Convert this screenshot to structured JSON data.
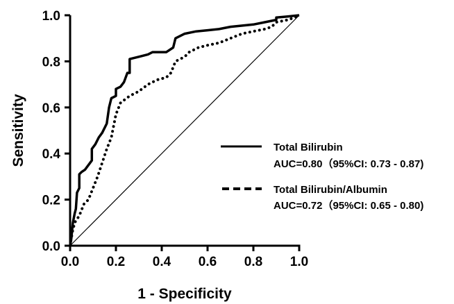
{
  "chart_data": {
    "type": "line",
    "xlabel": "1 - Specificity",
    "ylabel": "Sensitivity",
    "xlim": [
      0,
      1
    ],
    "ylim": [
      0,
      1
    ],
    "x_ticks": [
      "0.0",
      "0.2",
      "0.4",
      "0.6",
      "0.8",
      "1.0"
    ],
    "y_ticks": [
      "0.0",
      "0.2",
      "0.4",
      "0.6",
      "0.8",
      "1.0"
    ],
    "grid": false,
    "legend_position": "right",
    "reference_line": [
      [
        0,
        0
      ],
      [
        1,
        1
      ]
    ],
    "series": [
      {
        "name": "Total Bilirubin",
        "auc_label": "AUC=0.80（95%CI: 0.73 - 0.87)",
        "style": "solid",
        "color": "#000000",
        "points": [
          [
            0,
            0
          ],
          [
            0.005,
            0.03
          ],
          [
            0.012,
            0.1
          ],
          [
            0.02,
            0.14
          ],
          [
            0.025,
            0.16
          ],
          [
            0.03,
            0.23
          ],
          [
            0.04,
            0.25
          ],
          [
            0.04,
            0.31
          ],
          [
            0.05,
            0.32
          ],
          [
            0.065,
            0.33
          ],
          [
            0.08,
            0.35
          ],
          [
            0.095,
            0.37
          ],
          [
            0.095,
            0.42
          ],
          [
            0.11,
            0.44
          ],
          [
            0.125,
            0.47
          ],
          [
            0.14,
            0.49
          ],
          [
            0.16,
            0.53
          ],
          [
            0.17,
            0.6
          ],
          [
            0.18,
            0.64
          ],
          [
            0.2,
            0.65
          ],
          [
            0.2,
            0.68
          ],
          [
            0.22,
            0.69
          ],
          [
            0.235,
            0.71
          ],
          [
            0.25,
            0.75
          ],
          [
            0.26,
            0.75
          ],
          [
            0.26,
            0.81
          ],
          [
            0.3,
            0.82
          ],
          [
            0.34,
            0.83
          ],
          [
            0.36,
            0.84
          ],
          [
            0.42,
            0.84
          ],
          [
            0.45,
            0.86
          ],
          [
            0.46,
            0.9
          ],
          [
            0.5,
            0.92
          ],
          [
            0.55,
            0.93
          ],
          [
            0.6,
            0.935
          ],
          [
            0.65,
            0.94
          ],
          [
            0.7,
            0.95
          ],
          [
            0.8,
            0.96
          ],
          [
            0.85,
            0.97
          ],
          [
            0.9,
            0.98
          ],
          [
            0.9,
            0.99
          ],
          [
            0.95,
            0.995
          ],
          [
            1,
            1
          ]
        ]
      },
      {
        "name": "Total Bilirubin/Albumin",
        "auc_label": "AUC=0.72（95%CI: 0.65 - 0.80)",
        "style": "dotted",
        "color": "#000000",
        "points": [
          [
            0,
            0
          ],
          [
            0.01,
            0.06
          ],
          [
            0.02,
            0.1
          ],
          [
            0.04,
            0.13
          ],
          [
            0.06,
            0.18
          ],
          [
            0.08,
            0.2
          ],
          [
            0.1,
            0.25
          ],
          [
            0.12,
            0.3
          ],
          [
            0.14,
            0.36
          ],
          [
            0.16,
            0.42
          ],
          [
            0.18,
            0.47
          ],
          [
            0.2,
            0.57
          ],
          [
            0.22,
            0.62
          ],
          [
            0.26,
            0.65
          ],
          [
            0.3,
            0.67
          ],
          [
            0.34,
            0.7
          ],
          [
            0.38,
            0.72
          ],
          [
            0.42,
            0.73
          ],
          [
            0.44,
            0.75
          ],
          [
            0.46,
            0.8
          ],
          [
            0.48,
            0.81
          ],
          [
            0.5,
            0.82
          ],
          [
            0.52,
            0.84
          ],
          [
            0.56,
            0.86
          ],
          [
            0.6,
            0.87
          ],
          [
            0.65,
            0.88
          ],
          [
            0.7,
            0.9
          ],
          [
            0.75,
            0.92
          ],
          [
            0.8,
            0.93
          ],
          [
            0.85,
            0.94
          ],
          [
            0.88,
            0.95
          ],
          [
            0.9,
            0.97
          ],
          [
            0.95,
            0.98
          ],
          [
            0.98,
            0.99
          ],
          [
            1,
            1
          ]
        ]
      }
    ]
  }
}
